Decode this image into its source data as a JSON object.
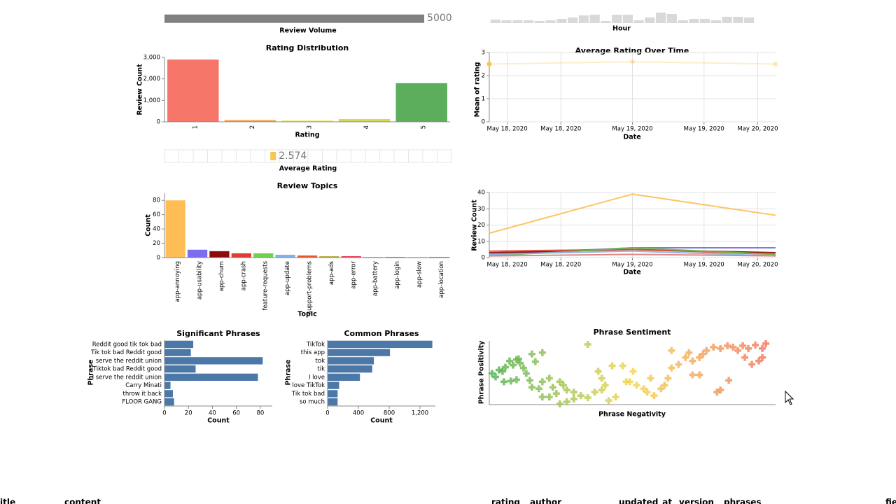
{
  "chart_data": [
    {
      "type": "bar",
      "orientation": "horizontal",
      "x_label": "Review Volume",
      "values": [
        5000
      ],
      "color": "#808080",
      "xlim": [
        0,
        5525
      ]
    },
    {
      "type": "bar",
      "x_label": "Hour",
      "values": [
        5,
        4,
        4,
        4,
        3,
        4,
        6,
        8,
        11,
        12,
        3,
        12,
        12,
        4,
        8,
        15,
        13,
        4,
        6,
        6,
        4,
        9,
        9,
        8
      ],
      "color": "#d9d9d9",
      "ylim": [
        0,
        16
      ]
    },
    {
      "type": "bar",
      "title": "Rating Distribution",
      "x_label": "Rating",
      "y_label": "Review Count",
      "categories": [
        "1",
        "2",
        "3",
        "4",
        "5"
      ],
      "values": [
        2900,
        80,
        60,
        130,
        1800
      ],
      "colors": [
        "#f7766a",
        "#f4a34f",
        "#efe75a",
        "#d8d855",
        "#5cae5c"
      ],
      "ylim": [
        0,
        3000
      ],
      "yticks": [
        0,
        {
          "value": 1000,
          "label": "1,000"
        },
        {
          "value": 2000,
          "label": "2,000"
        },
        {
          "value": 3000,
          "label": "3,000"
        }
      ]
    },
    {
      "type": "strip",
      "x_label": "Average Rating",
      "values": [
        2.574
      ],
      "color": "#f9c74f",
      "xlim": [
        0,
        6.8
      ]
    },
    {
      "type": "line",
      "title": "Average Rating Over Time",
      "x_label": "Date",
      "y_label": "Mean of rating",
      "x": [
        0,
        24,
        48
      ],
      "series": [
        {
          "color": "#f9c74f",
          "values": [
            2.5,
            2.6,
            2.5
          ]
        }
      ],
      "points": true,
      "xlim": [
        0,
        48
      ],
      "xticks": [
        {
          "value": 3,
          "label": "May 18, 2020"
        },
        {
          "value": 12,
          "label": "May 18, 2020"
        },
        {
          "value": 24,
          "label": "May 19, 2020"
        },
        {
          "value": 36,
          "label": "May 19, 2020"
        },
        {
          "value": 45,
          "label": "May 20, 2020"
        }
      ],
      "ylim": [
        0,
        3
      ],
      "yticks": [
        0,
        1,
        2,
        3
      ],
      "grid": true
    },
    {
      "type": "bar",
      "title": "Review Topics",
      "x_label": "Topic",
      "y_label": "Count",
      "categories": [
        "app-annoying",
        "app-usability",
        "app-churn",
        "app-crash",
        "feature-requests",
        "app-update",
        "support-problems",
        "app-ads",
        "app-error",
        "app-battery",
        "app-login",
        "app-slow",
        "app-location"
      ],
      "values": [
        80,
        11,
        9,
        6,
        6,
        4,
        3,
        2,
        2,
        1,
        1,
        1,
        1
      ],
      "colors": [
        "#ffbe55",
        "#7b6cf0",
        "#8b0a0a",
        "#e03c31",
        "#6fd04b",
        "#7fb0f0",
        "#e8562e",
        "#b8b040",
        "#e83b5a",
        "#6fd4d0",
        "#c050c8",
        "#f0d060",
        "#4a90d0"
      ],
      "ylim": [
        0,
        90
      ],
      "yticks": [
        0,
        20,
        40,
        60,
        80
      ]
    },
    {
      "type": "line",
      "x_label": "Date",
      "y_label": "Review Count",
      "x": [
        0,
        24,
        48
      ],
      "series": [
        {
          "color": "#ffbe55",
          "values": [
            15,
            39,
            26
          ]
        },
        {
          "color": "#6c6ce6",
          "values": [
            2,
            6,
            6
          ]
        },
        {
          "color": "#8b0000",
          "values": [
            3,
            5,
            3
          ]
        },
        {
          "color": "#e34a33",
          "values": [
            4,
            5,
            2
          ]
        },
        {
          "color": "#6abf40",
          "values": [
            1,
            6,
            2
          ]
        },
        {
          "color": "#7fb3e8",
          "values": [
            2,
            4,
            1
          ]
        },
        {
          "color": "#e07b7b",
          "values": [
            1,
            2,
            1
          ]
        }
      ],
      "xlim": [
        0,
        48
      ],
      "xticks": [
        {
          "value": 3,
          "label": "May 18, 2020"
        },
        {
          "value": 12,
          "label": "May 18, 2020"
        },
        {
          "value": 24,
          "label": "May 19, 2020"
        },
        {
          "value": 36,
          "label": "May 19, 2020"
        },
        {
          "value": 45,
          "label": "May 20, 2020"
        }
      ],
      "ylim": [
        0,
        40
      ],
      "yticks": [
        0,
        10,
        20,
        30,
        40
      ],
      "grid": true
    },
    {
      "type": "bar",
      "orientation": "horizontal",
      "title": "Significant Phrases",
      "x_label": "Count",
      "y_label": "Phrase",
      "categories": [
        "Reddit good tik tok bad",
        "Tik tok bad Reddit good",
        "serve the reddit union",
        "Tiktok bad Reddit good",
        "I serve the reddit union",
        "Carry Minati",
        "throw it back",
        "FLOOR GANG"
      ],
      "values": [
        24,
        22,
        82,
        26,
        78,
        5,
        7,
        8
      ],
      "color": "#4c78a8",
      "xlim": [
        0,
        90
      ],
      "xticks": [
        0,
        20,
        40,
        60,
        80
      ]
    },
    {
      "type": "bar",
      "orientation": "horizontal",
      "title": "Common Phrases",
      "x_label": "Count",
      "y_label": "Phrase",
      "categories": [
        "TikTok",
        "this app",
        "tok",
        "tik",
        "I love",
        "love TikTok",
        "Tik tok bad",
        "so much"
      ],
      "values": [
        1360,
        810,
        600,
        580,
        420,
        150,
        130,
        130
      ],
      "color": "#4c78a8",
      "xlim": [
        0,
        1400
      ],
      "xticks": [
        0,
        400,
        800,
        {
          "value": 1200,
          "label": "1,200"
        }
      ]
    },
    {
      "type": "scatter",
      "title": "Phrase Sentiment",
      "x_label": "Phrase Negativity",
      "y_label": "Phrase Positivity",
      "x": [
        4,
        9,
        14,
        19,
        23,
        29,
        34,
        39,
        44,
        49,
        42,
        61,
        76,
        66,
        53,
        58,
        21,
        31,
        39,
        141,
        61,
        71,
        76,
        86,
        91,
        101,
        106,
        96,
        111,
        86,
        121,
        76,
        101,
        111,
        121,
        131,
        141,
        151,
        161,
        166,
        176,
        191,
        181,
        171,
        201,
        211,
        221,
        226,
        236,
        246,
        251,
        256,
        261,
        271,
        281,
        286,
        291,
        301,
        306,
        311,
        321,
        331,
        341,
        349,
        356,
        363,
        371,
        381,
        391,
        396,
        376,
        386,
        391,
        366,
        291,
        301,
        343,
        331,
        326,
        231,
        206,
        196,
        161,
        156,
        261
      ],
      "y": [
        45,
        40,
        50,
        48,
        54,
        63,
        57,
        65,
        60,
        53,
        66,
        73,
        75,
        62,
        45,
        35,
        33,
        34,
        36,
        87,
        25,
        23,
        33,
        38,
        25,
        33,
        28,
        16,
        21,
        11,
        18,
        11,
        1,
        4,
        8,
        13,
        10,
        18,
        21,
        28,
        56,
        56,
        11,
        6,
        33,
        28,
        23,
        18,
        13,
        23,
        28,
        38,
        53,
        58,
        68,
        75,
        63,
        68,
        73,
        78,
        83,
        81,
        85,
        83,
        78,
        85,
        81,
        86,
        81,
        88,
        58,
        63,
        68,
        68,
        43,
        43,
        35,
        21,
        18,
        38,
        48,
        33,
        38,
        48,
        78
      ],
      "colors": [
        "#4caf50",
        "#f2d64b",
        "#f26b5b"
      ],
      "xlim": [
        0,
        410
      ],
      "ylim": [
        0,
        92
      ]
    }
  ],
  "table": {
    "columns": [
      "itle",
      "content",
      "rating",
      "author",
      "updated_at",
      "version",
      "phrases",
      "fie"
    ]
  }
}
